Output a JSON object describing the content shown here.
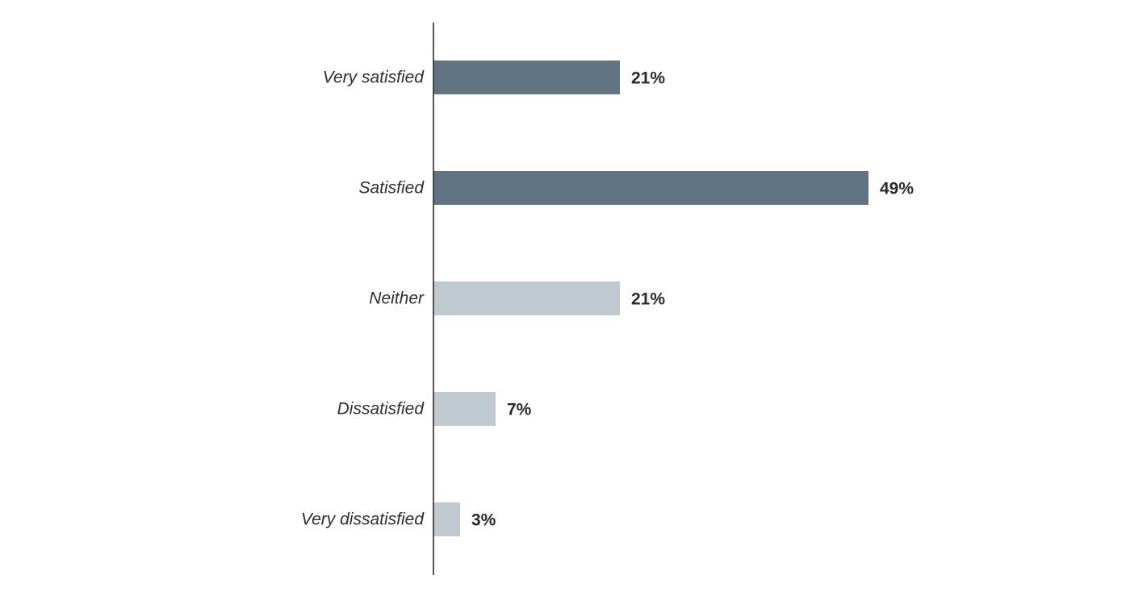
{
  "chart_data": {
    "type": "bar",
    "orientation": "horizontal",
    "title": "",
    "xlabel": "",
    "ylabel": "",
    "categories": [
      "Very satisfied",
      "Satisfied",
      "Neither",
      "Dissatisfied",
      "Very dissatisfied"
    ],
    "values": [
      21,
      49,
      21,
      7,
      3
    ],
    "value_labels": [
      "21%",
      "49%",
      "21%",
      "7%",
      "3%"
    ],
    "unit": "%",
    "xlim": [
      0,
      49
    ],
    "grid": false,
    "legend": "none",
    "bar_colors": [
      "#607482",
      "#607482",
      "#bfc9d0",
      "#bfc9d0",
      "#bfc9d0"
    ],
    "axis_color": "#222222"
  }
}
